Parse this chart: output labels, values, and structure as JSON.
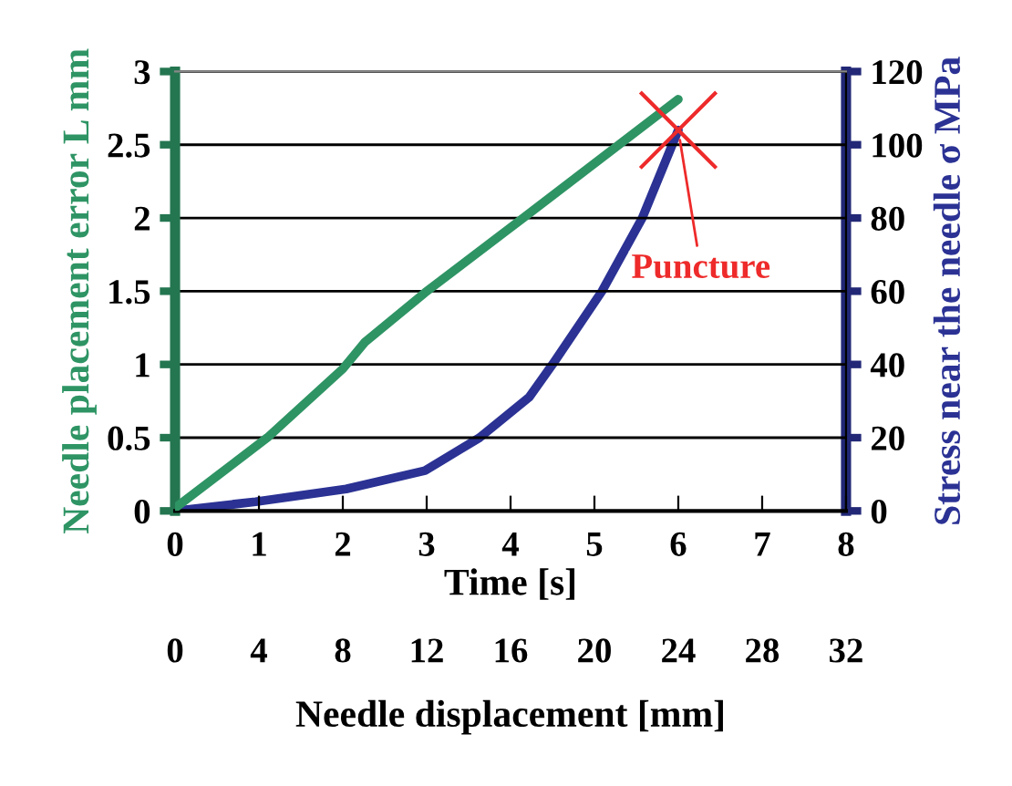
{
  "chart_data": {
    "type": "line",
    "xlabel": "Time [s]",
    "ylabel": "Needle placement error L mm",
    "y2label": "Stress near the needle σ MPa",
    "x2label": "Needle displacement [mm]",
    "xlim": [
      0,
      8
    ],
    "xticks": [
      0,
      1,
      2,
      3,
      4,
      5,
      6,
      7,
      8
    ],
    "x2lim": [
      0,
      32
    ],
    "x2ticks": [
      0,
      4,
      8,
      12,
      16,
      20,
      24,
      28,
      32
    ],
    "ylim": [
      0,
      3
    ],
    "yticks": [
      0,
      0.5,
      1,
      1.5,
      2,
      2.5,
      3
    ],
    "y2lim": [
      0,
      120
    ],
    "y2ticks": [
      0,
      20,
      40,
      60,
      80,
      100,
      120
    ],
    "grid": "y",
    "line_style": "solid",
    "marker": "none",
    "series": [
      {
        "color": "#2e9464",
        "x": [
          0,
          1.1,
          2.0,
          2.26,
          2.98,
          4.15,
          6.0
        ],
        "values": [
          0.02,
          0.5,
          0.97,
          1.15,
          1.49,
          2.0,
          2.81
        ]
      },
      {
        "color": "#2b3294",
        "axis": "y2",
        "x": [
          0,
          0.96,
          2.04,
          2.98,
          3.63,
          4.22,
          4.5,
          5.09,
          5.57,
          6.0
        ],
        "values": [
          0,
          2.5,
          6,
          11,
          20,
          31,
          40,
          60,
          80,
          104
        ]
      },
      {
        "type": "scatter",
        "marker": "cross",
        "color": "#ee2a2a",
        "x": [
          6.0
        ],
        "values": [
          2.6
        ]
      }
    ],
    "annotations": [
      {
        "text": "Puncture",
        "x": 6.0,
        "y": 2.6
      }
    ]
  }
}
